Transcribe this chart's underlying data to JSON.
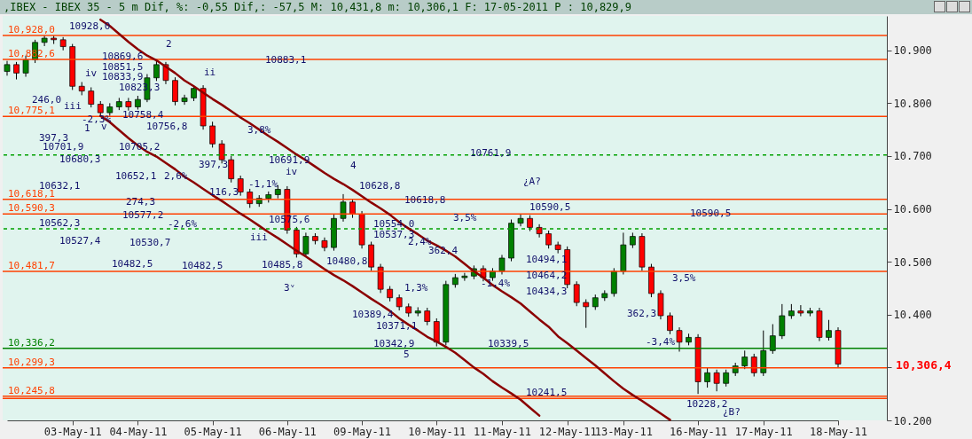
{
  "chart_data": {
    "type": "candlestick",
    "title": ",IBEX - IBEX 35 -   5 m Dif, %: -0,55 Dif,: -57,5 M: 10,431,8 m: 10,306,1 F: 17-05-2011 P : 10,829,9",
    "categories": [
      null,
      null,
      null,
      null,
      null,
      null,
      null,
      "03-May-11",
      null,
      null,
      null,
      null,
      null,
      null,
      "04-May-11",
      null,
      null,
      null,
      null,
      null,
      null,
      null,
      "05-May-11",
      null,
      null,
      null,
      null,
      null,
      null,
      null,
      "06-May-11",
      null,
      null,
      null,
      null,
      null,
      null,
      null,
      "09-May-11",
      null,
      null,
      null,
      null,
      null,
      null,
      null,
      "10-May-11",
      null,
      null,
      null,
      null,
      null,
      null,
      "11-May-11",
      null,
      null,
      null,
      null,
      null,
      null,
      "12-May-11",
      null,
      null,
      null,
      null,
      null,
      "13-May-11",
      null,
      null,
      null,
      null,
      null,
      null,
      null,
      "16-May-11",
      null,
      null,
      null,
      null,
      null,
      null,
      "17-May-11",
      null,
      null,
      null,
      null,
      null,
      null,
      null,
      "18-May-11"
    ],
    "ohlc": [
      [
        10860,
        10880,
        10852,
        10873
      ],
      [
        10873,
        10878,
        10845,
        10857
      ],
      [
        10857,
        10890,
        10850,
        10882
      ],
      [
        10882,
        10920,
        10876,
        10915
      ],
      [
        10915,
        10928,
        10908,
        10923
      ],
      [
        10923,
        10928,
        10912,
        10920
      ],
      [
        10920,
        10925,
        10900,
        10907
      ],
      [
        10907,
        10912,
        10825,
        10832
      ],
      [
        10832,
        10840,
        10815,
        10823
      ],
      [
        10823,
        10830,
        10792,
        10798
      ],
      [
        10798,
        10804,
        10776,
        10782
      ],
      [
        10782,
        10800,
        10776,
        10793
      ],
      [
        10793,
        10810,
        10787,
        10803
      ],
      [
        10803,
        10810,
        10786,
        10793
      ],
      [
        10793,
        10814,
        10788,
        10807
      ],
      [
        10807,
        10855,
        10802,
        10848
      ],
      [
        10848,
        10880,
        10842,
        10873
      ],
      [
        10873,
        10878,
        10836,
        10843
      ],
      [
        10843,
        10849,
        10796,
        10803
      ],
      [
        10803,
        10816,
        10797,
        10810
      ],
      [
        10810,
        10834,
        10804,
        10828
      ],
      [
        10828,
        10834,
        10750,
        10757
      ],
      [
        10757,
        10765,
        10716,
        10723
      ],
      [
        10723,
        10730,
        10686,
        10693
      ],
      [
        10693,
        10700,
        10650,
        10657
      ],
      [
        10657,
        10663,
        10625,
        10632
      ],
      [
        10632,
        10638,
        10602,
        10610
      ],
      [
        10610,
        10626,
        10604,
        10620
      ],
      [
        10620,
        10633,
        10612,
        10627
      ],
      [
        10627,
        10645,
        10620,
        10637
      ],
      [
        10637,
        10643,
        10553,
        10560
      ],
      [
        10560,
        10566,
        10508,
        10515
      ],
      [
        10515,
        10555,
        10509,
        10548
      ],
      [
        10548,
        10554,
        10533,
        10540
      ],
      [
        10540,
        10546,
        10520,
        10527
      ],
      [
        10527,
        10590,
        10521,
        10582
      ],
      [
        10582,
        10628,
        10576,
        10613
      ],
      [
        10613,
        10619,
        10583,
        10590
      ],
      [
        10590,
        10596,
        10525,
        10532
      ],
      [
        10532,
        10538,
        10483,
        10490
      ],
      [
        10490,
        10496,
        10441,
        10448
      ],
      [
        10448,
        10454,
        10425,
        10432
      ],
      [
        10432,
        10438,
        10408,
        10415
      ],
      [
        10415,
        10421,
        10396,
        10403
      ],
      [
        10403,
        10414,
        10397,
        10407
      ],
      [
        10407,
        10413,
        10380,
        10387
      ],
      [
        10387,
        10393,
        10340,
        10348
      ],
      [
        10348,
        10464,
        10342,
        10457
      ],
      [
        10457,
        10477,
        10451,
        10470
      ],
      [
        10470,
        10479,
        10464,
        10473
      ],
      [
        10473,
        10493,
        10467,
        10487
      ],
      [
        10487,
        10493,
        10463,
        10470
      ],
      [
        10470,
        10488,
        10464,
        10482
      ],
      [
        10482,
        10513,
        10476,
        10507
      ],
      [
        10507,
        10580,
        10501,
        10573
      ],
      [
        10573,
        10590,
        10567,
        10582
      ],
      [
        10582,
        10588,
        10558,
        10565
      ],
      [
        10565,
        10571,
        10546,
        10553
      ],
      [
        10553,
        10559,
        10525,
        10532
      ],
      [
        10532,
        10538,
        10516,
        10523
      ],
      [
        10523,
        10529,
        10450,
        10457
      ],
      [
        10457,
        10463,
        10416,
        10423
      ],
      [
        10423,
        10429,
        10375,
        10415
      ],
      [
        10415,
        10438,
        10409,
        10432
      ],
      [
        10432,
        10446,
        10426,
        10440
      ],
      [
        10440,
        10488,
        10434,
        10482
      ],
      [
        10482,
        10555,
        10476,
        10532
      ],
      [
        10532,
        10555,
        10526,
        10548
      ],
      [
        10548,
        10554,
        10483,
        10490
      ],
      [
        10490,
        10496,
        10433,
        10440
      ],
      [
        10440,
        10446,
        10391,
        10398
      ],
      [
        10398,
        10404,
        10363,
        10370
      ],
      [
        10370,
        10376,
        10330,
        10348
      ],
      [
        10348,
        10364,
        10342,
        10357
      ],
      [
        10357,
        10363,
        10250,
        10273
      ],
      [
        10273,
        10300,
        10262,
        10290
      ],
      [
        10290,
        10296,
        10255,
        10270
      ],
      [
        10270,
        10296,
        10264,
        10290
      ],
      [
        10290,
        10309,
        10284,
        10303
      ],
      [
        10303,
        10332,
        10297,
        10320
      ],
      [
        10320,
        10326,
        10283,
        10290
      ],
      [
        10290,
        10370,
        10284,
        10332
      ],
      [
        10332,
        10382,
        10326,
        10360
      ],
      [
        10360,
        10420,
        10354,
        10398
      ],
      [
        10398,
        10420,
        10392,
        10407
      ],
      [
        10407,
        10418,
        10397,
        10403
      ],
      [
        10403,
        10413,
        10397,
        10407
      ],
      [
        10407,
        10413,
        10350,
        10357
      ],
      [
        10357,
        10390,
        10351,
        10370
      ],
      [
        10370,
        10376,
        10300,
        10306.4
      ]
    ],
    "series": [
      {
        "type": "line",
        "color": "#8b0000",
        "values": [
          null,
          null,
          null,
          null,
          null,
          null,
          null,
          null,
          null,
          null,
          10958,
          10946,
          10931,
          10916,
          10902,
          10890,
          10881,
          10869,
          10857,
          10843,
          10832,
          10820,
          10808,
          10797,
          10785,
          10773,
          10762,
          10750,
          10738,
          10727,
          10715,
          10703,
          10692,
          10680,
          10668,
          10657,
          10647,
          10636,
          10624,
          10612,
          10601,
          10589,
          10575,
          10563,
          10552,
          10540,
          10531,
          10521,
          10510,
          10496,
          10482,
          10470,
          10456,
          10444,
          10433,
          10421,
          10406,
          10391,
          10377,
          10359,
          10346,
          10332,
          10318,
          10304,
          10289,
          10274,
          10260,
          10248,
          10237,
          10225,
          10213,
          10201,
          null,
          null,
          null,
          null,
          null,
          null,
          null,
          null,
          null,
          null,
          null,
          null,
          null,
          null,
          null,
          null,
          null,
          null
        ]
      },
      {
        "type": "line",
        "color": "#8b0000",
        "values": [
          null,
          null,
          null,
          null,
          null,
          null,
          null,
          null,
          null,
          null,
          10776,
          10764,
          10749,
          10734,
          10720,
          10708,
          10699,
          10687,
          10675,
          10661,
          10650,
          10638,
          10626,
          10615,
          10603,
          10591,
          10580,
          10568,
          10556,
          10545,
          10533,
          10521,
          10510,
          10498,
          10486,
          10475,
          10465,
          10454,
          10442,
          10430,
          10419,
          10407,
          10393,
          10381,
          10370,
          10358,
          10349,
          10339,
          10328,
          10314,
          10300,
          10288,
          10274,
          10262,
          10251,
          10239,
          10224,
          10209,
          null,
          null,
          null,
          null,
          null,
          null,
          null,
          null,
          null,
          null,
          null,
          null,
          null,
          null,
          null,
          null,
          null,
          null,
          null,
          null,
          null,
          null,
          null,
          null,
          null,
          null,
          null,
          null,
          null,
          null,
          null,
          null
        ]
      }
    ],
    "ylim": [
      10200,
      10965
    ],
    "yticks": [
      {
        "value": 10200,
        "label": "10.200"
      },
      {
        "value": 10300,
        "label": null
      },
      {
        "value": 10400,
        "label": "10.400"
      },
      {
        "value": 10500,
        "label": "10.500"
      },
      {
        "value": 10600,
        "label": "10.600"
      },
      {
        "value": 10700,
        "label": "10.700"
      },
      {
        "value": 10800,
        "label": "10.800"
      },
      {
        "value": 10900,
        "label": "10.900"
      }
    ],
    "ref_lines": [
      {
        "axis": "y",
        "value": 10928.0,
        "label": "10,928,0",
        "color": "#ff4000"
      },
      {
        "axis": "y",
        "value": 10882.6,
        "label": "10,882,6",
        "color": "#ff4000"
      },
      {
        "axis": "y",
        "value": 10775.1,
        "label": "10,775,1",
        "color": "#ff4000"
      },
      {
        "axis": "y",
        "value": 10701.9,
        "label": null,
        "color": "#00a000",
        "line_style": "dashed"
      },
      {
        "axis": "y",
        "value": 10618.1,
        "label": "10,618,1",
        "color": "#ff4000"
      },
      {
        "axis": "y",
        "value": 10590.3,
        "label": "10,590,3",
        "color": "#ff4000"
      },
      {
        "axis": "y",
        "value": 10562.3,
        "label": null,
        "color": "#00a000",
        "line_style": "dashed"
      },
      {
        "axis": "y",
        "value": 10481.7,
        "label": "10,481,7",
        "color": "#ff4000"
      },
      {
        "axis": "y",
        "value": 10336.2,
        "label": "10,336,2",
        "color": "#008000"
      },
      {
        "axis": "y",
        "value": 10299.3,
        "label": "10,299,3",
        "color": "#ff4000"
      },
      {
        "axis": "y",
        "value": 10245.8,
        "label": "10,245,8",
        "color": "#ff4000"
      },
      {
        "axis": "y",
        "value": 10241.5,
        "label": null,
        "color": "#ff4000"
      }
    ],
    "annotations": [
      "1",
      "2",
      "3ᵛ",
      "4",
      "5",
      "¿A?",
      "¿B?",
      "ii",
      "iii",
      "iv",
      "v",
      "iii",
      "iv",
      "10928,0",
      "10869,6",
      "10851,5",
      "10833,9",
      "10823,3",
      "246,0",
      "-2,3%",
      "10758,4",
      "10756,8",
      "3,8%",
      "10883,1",
      "397,3",
      "10701,9",
      "10705,2",
      "10680,3",
      "397,3",
      "10691,9",
      "10652,1",
      "2,6%",
      "-1,1%",
      "10632,1",
      "116,3",
      "274,3",
      "10577,2",
      "10575,6",
      "10562,3",
      "-2,6%",
      "10527,4",
      "10530,7",
      "10482,5",
      "10482,5",
      "10485,8",
      "10628,8",
      "10618,8",
      "10761,9",
      "10554,0",
      "10537,3",
      "3,5%",
      "2,4%",
      "362,4",
      "10480,8",
      "1,3%",
      "-1,4%",
      "10389,4",
      "10371,1",
      "10342,9",
      "10339,5",
      "10590,5",
      "10494,1",
      "10464,2",
      "10434,3",
      "362,3",
      "10590,5",
      "3,5%",
      "-3,4%",
      "10241,5",
      "10228,2",
      "10,306,4"
    ]
  }
}
